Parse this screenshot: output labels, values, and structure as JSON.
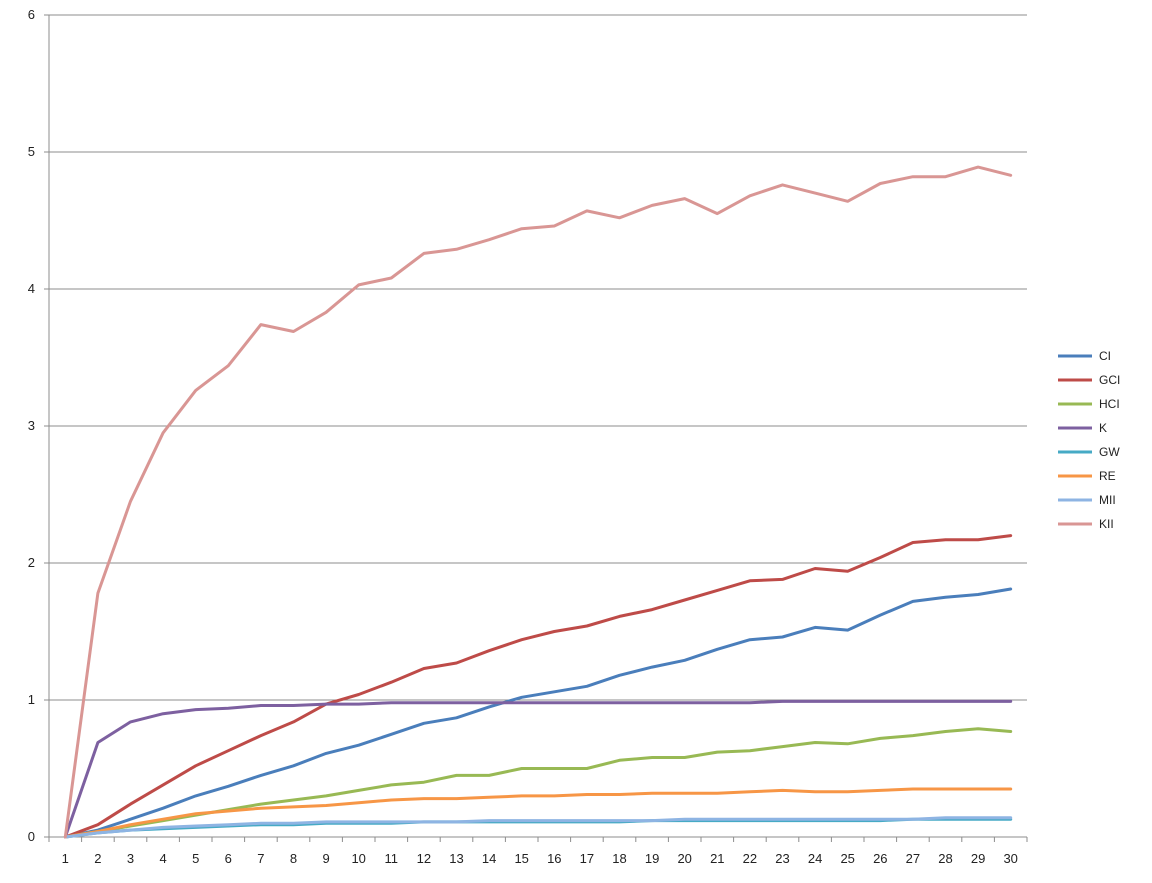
{
  "chart_data": {
    "type": "line",
    "title": "",
    "xlabel": "",
    "ylabel": "",
    "x": [
      1,
      2,
      3,
      4,
      5,
      6,
      7,
      8,
      9,
      10,
      11,
      12,
      13,
      14,
      15,
      16,
      17,
      18,
      19,
      20,
      21,
      22,
      23,
      24,
      25,
      26,
      27,
      28,
      29,
      30
    ],
    "ylim": [
      0,
      6
    ],
    "yticks": [
      0,
      1,
      2,
      3,
      4,
      5,
      6
    ],
    "grid": true,
    "legend_position": "right",
    "series": [
      {
        "name": "CI",
        "color": "#4a7ebb",
        "values": [
          0,
          0.05,
          0.13,
          0.21,
          0.3,
          0.37,
          0.45,
          0.52,
          0.61,
          0.67,
          0.75,
          0.83,
          0.87,
          0.95,
          1.02,
          1.06,
          1.1,
          1.18,
          1.24,
          1.29,
          1.37,
          1.44,
          1.46,
          1.53,
          1.51,
          1.62,
          1.72,
          1.75,
          1.77,
          1.81
        ]
      },
      {
        "name": "GCI",
        "color": "#be4b48",
        "values": [
          0,
          0.09,
          0.24,
          0.38,
          0.52,
          0.63,
          0.74,
          0.84,
          0.97,
          1.04,
          1.13,
          1.23,
          1.27,
          1.36,
          1.44,
          1.5,
          1.54,
          1.61,
          1.66,
          1.73,
          1.8,
          1.87,
          1.88,
          1.96,
          1.94,
          2.04,
          2.15,
          2.17,
          2.17,
          2.2
        ]
      },
      {
        "name": "HCI",
        "color": "#98b954",
        "values": [
          0,
          0.04,
          0.08,
          0.12,
          0.16,
          0.2,
          0.24,
          0.27,
          0.3,
          0.34,
          0.38,
          0.4,
          0.45,
          0.45,
          0.5,
          0.5,
          0.5,
          0.56,
          0.58,
          0.58,
          0.62,
          0.63,
          0.66,
          0.69,
          0.68,
          0.72,
          0.74,
          0.77,
          0.79,
          0.77
        ]
      },
      {
        "name": "K",
        "color": "#7d60a0",
        "values": [
          0,
          0.69,
          0.84,
          0.9,
          0.93,
          0.94,
          0.96,
          0.96,
          0.97,
          0.97,
          0.98,
          0.98,
          0.98,
          0.98,
          0.98,
          0.98,
          0.98,
          0.98,
          0.98,
          0.98,
          0.98,
          0.98,
          0.99,
          0.99,
          0.99,
          0.99,
          0.99,
          0.99,
          0.99,
          0.99
        ]
      },
      {
        "name": "GW",
        "color": "#46aac5",
        "values": [
          0,
          0.03,
          0.05,
          0.06,
          0.07,
          0.08,
          0.09,
          0.09,
          0.1,
          0.1,
          0.1,
          0.11,
          0.11,
          0.11,
          0.11,
          0.11,
          0.11,
          0.11,
          0.12,
          0.12,
          0.12,
          0.12,
          0.12,
          0.12,
          0.12,
          0.12,
          0.13,
          0.13,
          0.13,
          0.13
        ]
      },
      {
        "name": "RE",
        "color": "#f79646",
        "values": [
          0,
          0.04,
          0.09,
          0.13,
          0.17,
          0.19,
          0.21,
          0.22,
          0.23,
          0.25,
          0.27,
          0.28,
          0.28,
          0.29,
          0.3,
          0.3,
          0.31,
          0.31,
          0.32,
          0.32,
          0.32,
          0.33,
          0.34,
          0.33,
          0.33,
          0.34,
          0.35,
          0.35,
          0.35,
          0.35
        ]
      },
      {
        "name": "MII",
        "color": "#8eb4e3",
        "values": [
          0,
          0.03,
          0.05,
          0.07,
          0.08,
          0.09,
          0.1,
          0.1,
          0.11,
          0.11,
          0.11,
          0.11,
          0.11,
          0.12,
          0.12,
          0.12,
          0.12,
          0.12,
          0.12,
          0.13,
          0.13,
          0.13,
          0.13,
          0.13,
          0.13,
          0.13,
          0.13,
          0.14,
          0.14,
          0.14
        ]
      },
      {
        "name": "KII",
        "color": "#d99694",
        "values": [
          0,
          1.78,
          2.45,
          2.95,
          3.26,
          3.44,
          3.74,
          3.69,
          3.83,
          4.03,
          4.08,
          4.26,
          4.29,
          4.36,
          4.44,
          4.46,
          4.57,
          4.52,
          4.61,
          4.66,
          4.55,
          4.68,
          4.76,
          4.7,
          4.64,
          4.77,
          4.82,
          4.82,
          4.89,
          4.83
        ]
      }
    ]
  }
}
